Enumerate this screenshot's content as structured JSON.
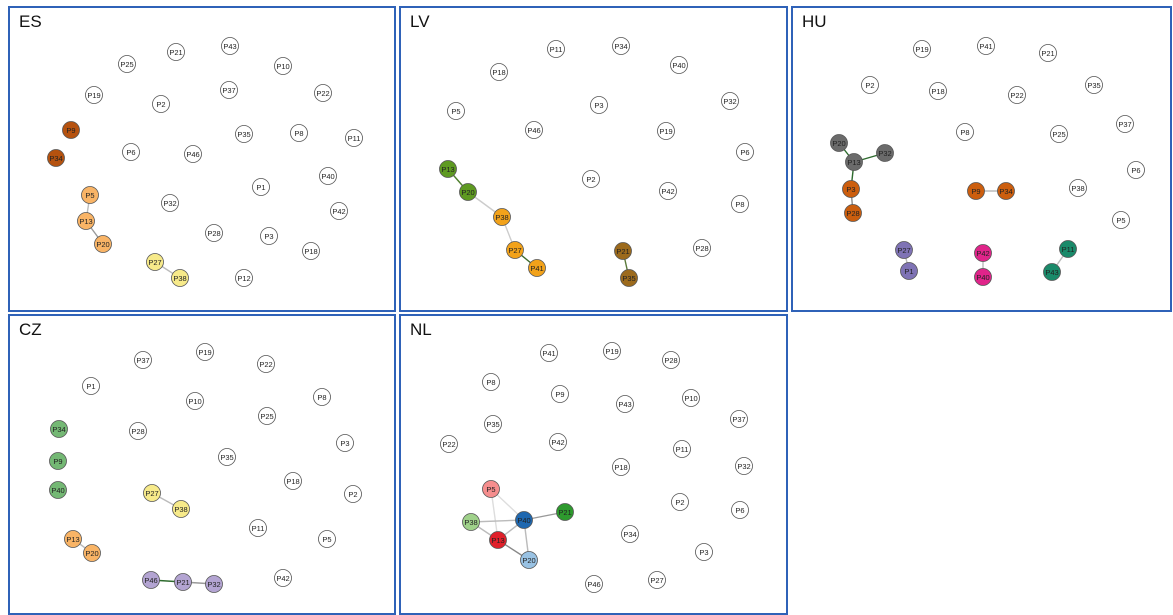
{
  "colors": {
    "panel_border": "#2f62b8",
    "node_default_fill": "#ffffff",
    "node_stroke": "#555555"
  },
  "panels": [
    {
      "title": "ES",
      "nodes": [
        {
          "id": "P25"
        },
        {
          "id": "P21"
        },
        {
          "id": "P43"
        },
        {
          "id": "P10"
        },
        {
          "id": "P19"
        },
        {
          "id": "P2"
        },
        {
          "id": "P37"
        },
        {
          "id": "P22"
        },
        {
          "id": "P9",
          "color": "#b5520f"
        },
        {
          "id": "P35"
        },
        {
          "id": "P8"
        },
        {
          "id": "P11"
        },
        {
          "id": "P34",
          "color": "#b5520f"
        },
        {
          "id": "P6"
        },
        {
          "id": "P46"
        },
        {
          "id": "P40"
        },
        {
          "id": "P1"
        },
        {
          "id": "P5",
          "color": "#f9b466"
        },
        {
          "id": "P32"
        },
        {
          "id": "P42"
        },
        {
          "id": "P13",
          "color": "#f9b466"
        },
        {
          "id": "P20",
          "color": "#f9b466"
        },
        {
          "id": "P28"
        },
        {
          "id": "P3"
        },
        {
          "id": "P18"
        },
        {
          "id": "P27",
          "color": "#f7ea8a"
        },
        {
          "id": "P38",
          "color": "#f7ea8a"
        },
        {
          "id": "P12"
        }
      ],
      "edges": [
        {
          "source": "P5",
          "target": "P13",
          "color": "#bbbbbb"
        },
        {
          "source": "P13",
          "target": "P20",
          "color": "#999999"
        },
        {
          "source": "P27",
          "target": "P38",
          "color": "#bbbbbb"
        }
      ]
    },
    {
      "title": "LV",
      "nodes": [
        {
          "id": "P11"
        },
        {
          "id": "P34"
        },
        {
          "id": "P18"
        },
        {
          "id": "P40"
        },
        {
          "id": "P5"
        },
        {
          "id": "P3"
        },
        {
          "id": "P32"
        },
        {
          "id": "P46"
        },
        {
          "id": "P19"
        },
        {
          "id": "P6"
        },
        {
          "id": "P13",
          "color": "#5e9a21"
        },
        {
          "id": "P2"
        },
        {
          "id": "P20",
          "color": "#5e9a21"
        },
        {
          "id": "P42"
        },
        {
          "id": "P8"
        },
        {
          "id": "P38",
          "color": "#f2a21a"
        },
        {
          "id": "P27",
          "color": "#f2a21a"
        },
        {
          "id": "P21",
          "color": "#9c6a1c"
        },
        {
          "id": "P28"
        },
        {
          "id": "P41",
          "color": "#f2a21a"
        },
        {
          "id": "P35",
          "color": "#9c6a1c"
        }
      ],
      "edges": [
        {
          "source": "P13",
          "target": "P20",
          "color": "#4f7f2c"
        },
        {
          "source": "P20",
          "target": "P38",
          "color": "#cccccc"
        },
        {
          "source": "P38",
          "target": "P27",
          "color": "#cccccc"
        },
        {
          "source": "P27",
          "target": "P41",
          "color": "#3d6b2c"
        },
        {
          "source": "P21",
          "target": "P35",
          "color": "#5b7a3a"
        }
      ]
    },
    {
      "title": "HU",
      "nodes": [
        {
          "id": "P19"
        },
        {
          "id": "P41"
        },
        {
          "id": "P21"
        },
        {
          "id": "P2"
        },
        {
          "id": "P18"
        },
        {
          "id": "P22"
        },
        {
          "id": "P35"
        },
        {
          "id": "P37"
        },
        {
          "id": "P8"
        },
        {
          "id": "P25"
        },
        {
          "id": "P20",
          "color": "#6b6b6b"
        },
        {
          "id": "P13",
          "color": "#6b6b6b"
        },
        {
          "id": "P32",
          "color": "#6b6b6b"
        },
        {
          "id": "P6"
        },
        {
          "id": "P3",
          "color": "#cc5e0e"
        },
        {
          "id": "P9",
          "color": "#cc5e0e"
        },
        {
          "id": "P34",
          "color": "#cc5e0e"
        },
        {
          "id": "P38"
        },
        {
          "id": "P28",
          "color": "#cc5e0e"
        },
        {
          "id": "P5"
        },
        {
          "id": "P27",
          "color": "#7f73b5"
        },
        {
          "id": "P42",
          "color": "#e0248a"
        },
        {
          "id": "P11",
          "color": "#1a8a6a"
        },
        {
          "id": "P1",
          "color": "#7f73b5"
        },
        {
          "id": "P40",
          "color": "#e0248a"
        },
        {
          "id": "P43",
          "color": "#1a8a6a"
        }
      ],
      "edges": [
        {
          "source": "P20",
          "target": "P13",
          "color": "#2e6b2e"
        },
        {
          "source": "P13",
          "target": "P32",
          "color": "#2e6b2e"
        },
        {
          "source": "P13",
          "target": "P3",
          "color": "#2e6b2e"
        },
        {
          "source": "P3",
          "target": "P28",
          "color": "#888888"
        },
        {
          "source": "P9",
          "target": "P34",
          "color": "#bbbbbb"
        },
        {
          "source": "P27",
          "target": "P1",
          "color": "#bbbbbb"
        },
        {
          "source": "P42",
          "target": "P40",
          "color": "#bbbbbb"
        },
        {
          "source": "P11",
          "target": "P43",
          "color": "#bbbbbb"
        }
      ]
    },
    {
      "title": "CZ",
      "nodes": [
        {
          "id": "P37"
        },
        {
          "id": "P19"
        },
        {
          "id": "P22"
        },
        {
          "id": "P1"
        },
        {
          "id": "P8"
        },
        {
          "id": "P10"
        },
        {
          "id": "P25"
        },
        {
          "id": "P34",
          "color": "#74b874"
        },
        {
          "id": "P28"
        },
        {
          "id": "P3"
        },
        {
          "id": "P35"
        },
        {
          "id": "P9",
          "color": "#74b874"
        },
        {
          "id": "P18"
        },
        {
          "id": "P40",
          "color": "#74b874"
        },
        {
          "id": "P2"
        },
        {
          "id": "P27",
          "color": "#f7ea8a"
        },
        {
          "id": "P38",
          "color": "#f7ea8a"
        },
        {
          "id": "P11"
        },
        {
          "id": "P5"
        },
        {
          "id": "P13",
          "color": "#f9b466"
        },
        {
          "id": "P20",
          "color": "#f9b466"
        },
        {
          "id": "P46",
          "color": "#b3a4d2"
        },
        {
          "id": "P21",
          "color": "#b3a4d2"
        },
        {
          "id": "P32",
          "color": "#b3a4d2"
        },
        {
          "id": "P42"
        }
      ],
      "edges": [
        {
          "source": "P27",
          "target": "P38",
          "color": "#bbbbbb"
        },
        {
          "source": "P13",
          "target": "P20",
          "color": "#bbbbbb"
        },
        {
          "source": "P46",
          "target": "P21",
          "color": "#2e6b2e"
        },
        {
          "source": "P21",
          "target": "P32",
          "color": "#999999"
        }
      ]
    },
    {
      "title": "NL",
      "nodes": [
        {
          "id": "P41"
        },
        {
          "id": "P19"
        },
        {
          "id": "P28"
        },
        {
          "id": "P8"
        },
        {
          "id": "P9"
        },
        {
          "id": "P43"
        },
        {
          "id": "P10"
        },
        {
          "id": "P35"
        },
        {
          "id": "P37"
        },
        {
          "id": "P22"
        },
        {
          "id": "P42"
        },
        {
          "id": "P11"
        },
        {
          "id": "P18"
        },
        {
          "id": "P32"
        },
        {
          "id": "P5",
          "color": "#f58e8e"
        },
        {
          "id": "P2"
        },
        {
          "id": "P6"
        },
        {
          "id": "P21",
          "color": "#2e9a2e"
        },
        {
          "id": "P38",
          "color": "#9fd18a"
        },
        {
          "id": "P40",
          "color": "#1f68b0"
        },
        {
          "id": "P13",
          "color": "#e0202a"
        },
        {
          "id": "P34"
        },
        {
          "id": "P20",
          "color": "#99c2e3"
        },
        {
          "id": "P3"
        },
        {
          "id": "P27"
        },
        {
          "id": "P46"
        }
      ],
      "edges": [
        {
          "source": "P5",
          "target": "P40",
          "color": "#dddddd"
        },
        {
          "source": "P5",
          "target": "P13",
          "color": "#dddddd"
        },
        {
          "source": "P38",
          "target": "P40",
          "color": "#bbbbbb"
        },
        {
          "source": "P38",
          "target": "P13",
          "color": "#bbbbbb"
        },
        {
          "source": "P40",
          "target": "P21",
          "color": "#999999"
        },
        {
          "source": "P40",
          "target": "P13",
          "color": "#bbbbbb"
        },
        {
          "source": "P40",
          "target": "P20",
          "color": "#bbbbbb"
        },
        {
          "source": "P13",
          "target": "P20",
          "color": "#888888"
        }
      ]
    }
  ]
}
